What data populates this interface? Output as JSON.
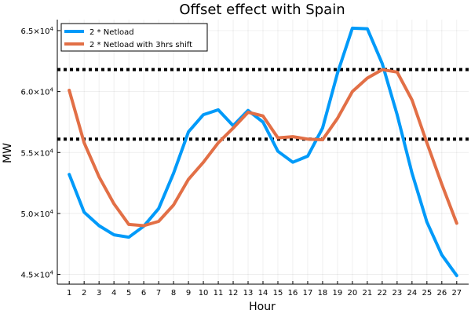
{
  "chart_data": {
    "type": "line",
    "title": "Offset effect with Spain",
    "xlabel": "Hour",
    "ylabel": "MW",
    "xlim": [
      0.2,
      27.8
    ],
    "ylim": [
      44200,
      65900
    ],
    "x": [
      1,
      2,
      3,
      4,
      5,
      6,
      7,
      8,
      9,
      10,
      11,
      12,
      13,
      14,
      15,
      16,
      17,
      18,
      19,
      20,
      21,
      22,
      23,
      24,
      25,
      26,
      27
    ],
    "x_ticks": [
      "1",
      "2",
      "3",
      "4",
      "5",
      "6",
      "7",
      "8",
      "9",
      "10",
      "11",
      "12",
      "13",
      "14",
      "15",
      "16",
      "17",
      "18",
      "19",
      "20",
      "21",
      "22",
      "23",
      "24",
      "25",
      "26",
      "27"
    ],
    "y_ticks": [
      {
        "value": 45000,
        "mantissa": "4.5×10",
        "exp": "4"
      },
      {
        "value": 50000,
        "mantissa": "5.0×10",
        "exp": "4"
      },
      {
        "value": 55000,
        "mantissa": "5.5×10",
        "exp": "4"
      },
      {
        "value": 60000,
        "mantissa": "6.0×10",
        "exp": "4"
      },
      {
        "value": 65000,
        "mantissa": "6.5×10",
        "exp": "4"
      }
    ],
    "grid": true,
    "legend_position": "top-left",
    "series": [
      {
        "name": "2 * Netload",
        "color": "#009af9",
        "values": [
          53200,
          50100,
          49000,
          48250,
          48050,
          48950,
          50400,
          53300,
          56700,
          58100,
          58500,
          57200,
          58450,
          57500,
          55100,
          54200,
          54700,
          57000,
          61500,
          65200,
          65150,
          62300,
          58100,
          53300,
          49300,
          46600,
          44900
        ]
      },
      {
        "name": "2 * Netload with 3hrs shift",
        "color": "#e26f46",
        "values": [
          60100,
          55800,
          53000,
          50800,
          49100,
          49000,
          49350,
          50700,
          52800,
          54200,
          55800,
          57000,
          58300,
          58000,
          56200,
          56300,
          56100,
          56050,
          57800,
          60000,
          61100,
          61800,
          61600,
          59300,
          55800,
          52400,
          49200
        ]
      }
    ],
    "hlines": [
      {
        "value": 56100,
        "color": "#000000",
        "style": "dotted"
      },
      {
        "value": 61800,
        "color": "#000000",
        "style": "dotted"
      }
    ]
  }
}
